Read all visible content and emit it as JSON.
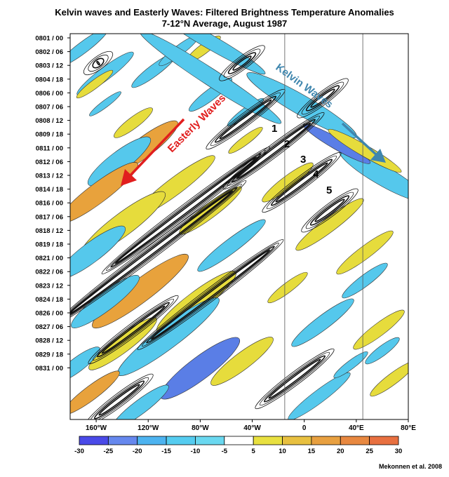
{
  "chart_data": {
    "type": "heatmap",
    "title": "Kelvin waves and Easterly Waves: Filtered Brightness Temperature Anomalies",
    "subtitle": "7-12°N Average, August 1987",
    "xlabel": "",
    "ylabel": "",
    "x_ticks": [
      "160°W",
      "120°W",
      "80°W",
      "40°W",
      "0",
      "40°E",
      "80°E"
    ],
    "x_tick_values": [
      -160,
      -120,
      -80,
      -40,
      0,
      40,
      80
    ],
    "xlim": [
      -180,
      80
    ],
    "y_ticks": [
      "0801 / 00",
      "0802 / 06",
      "0803 / 12",
      "0804 / 18",
      "0806 / 00",
      "0807 / 06",
      "0808 / 12",
      "0809 / 18",
      "0811 / 00",
      "0812 / 06",
      "0813 / 12",
      "0814 / 18",
      "0816 / 00",
      "0817 / 06",
      "0818 / 12",
      "0819 / 18",
      "0821 / 00",
      "0822 / 06",
      "0823 / 12",
      "0824 / 18",
      "0826 / 00",
      "0827 / 06",
      "0828 / 12",
      "0829 / 18",
      "0831 / 00"
    ],
    "ylim_days": [
      0,
      30.5
    ],
    "colorbar": {
      "ticks": [
        "-30",
        "-25",
        "-20",
        "-15",
        "-10",
        "-5",
        "5",
        "10",
        "15",
        "20",
        "25",
        "30"
      ],
      "colors": [
        "#4a4ae8",
        "#6688ee",
        "#4db3f0",
        "#55ccf0",
        "#6ad8f0",
        "#ffffff",
        "#e8e040",
        "#e8c040",
        "#e8a040",
        "#e88840",
        "#e87040"
      ]
    },
    "vertical_lines_x": [
      -15,
      45
    ],
    "annotations": {
      "easterly": "Easterly Waves",
      "kelvin": "Kelvin Waves",
      "wave_numbers": [
        "1",
        "2",
        "3",
        "4",
        "5"
      ]
    },
    "credit": "Mekonnen et al. 2008"
  },
  "colors": {
    "blue": "#55c8ec",
    "blue_dark": "#5a7ee6",
    "yellow": "#e6dc3c",
    "orange": "#e8a23c",
    "easterly_arrow": "#e11e1e",
    "kelvin_arrow": "#3f86ae"
  }
}
